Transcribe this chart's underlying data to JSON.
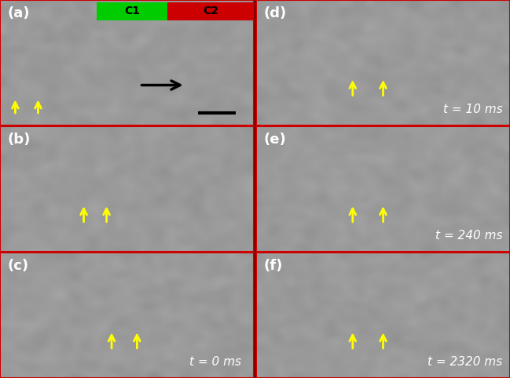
{
  "figsize": [
    6.49,
    4.82
  ],
  "dpi": 100,
  "bg_color": "#b0b0b0",
  "panel_labels": [
    "(a)",
    "(b)",
    "(c)",
    "(d)",
    "(e)",
    "(f)"
  ],
  "time_labels": {
    "c": "t = 0 ms",
    "d": "t = 10 ms",
    "e": "t = 240 ms",
    "f": "t = 2320 ms"
  },
  "c1_color": "#00cc00",
  "c2_color": "#cc0000",
  "c1_label": "C1",
  "c2_label": "C2",
  "arrow_color": "#000000",
  "yellow_arrow_color": "#ffff00",
  "border_color": "#ff0000",
  "panel_border_color": "#cc0000",
  "grid_color": "#ffffff"
}
